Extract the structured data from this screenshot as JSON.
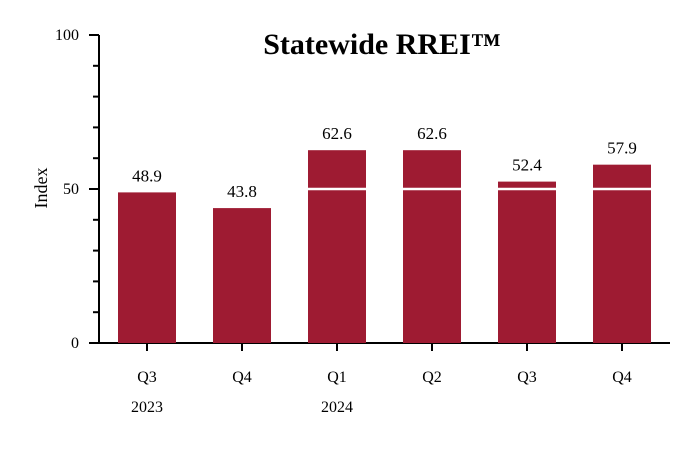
{
  "chart_data": {
    "type": "bar",
    "title": "Statewide RREI™",
    "xlabel": "",
    "ylabel": "Index",
    "ylim": [
      0,
      100
    ],
    "yticks": [
      "0",
      "50",
      "100"
    ],
    "categories": [
      "Q3",
      "Q4",
      "Q1",
      "Q2",
      "Q3",
      "Q4"
    ],
    "category_years": [
      "2023",
      "",
      "2024",
      "",
      "",
      ""
    ],
    "values": [
      48.9,
      43.8,
      62.6,
      62.6,
      52.4,
      57.9
    ],
    "value_labels": [
      "48.9",
      "43.8",
      "62.6",
      "62.6",
      "52.4",
      "57.9"
    ],
    "reference_line": 50,
    "grid": false,
    "legend": "none",
    "colors": {
      "bar": "#9E1B32",
      "reference_line": "#ffffff",
      "axis": "#000000"
    }
  }
}
